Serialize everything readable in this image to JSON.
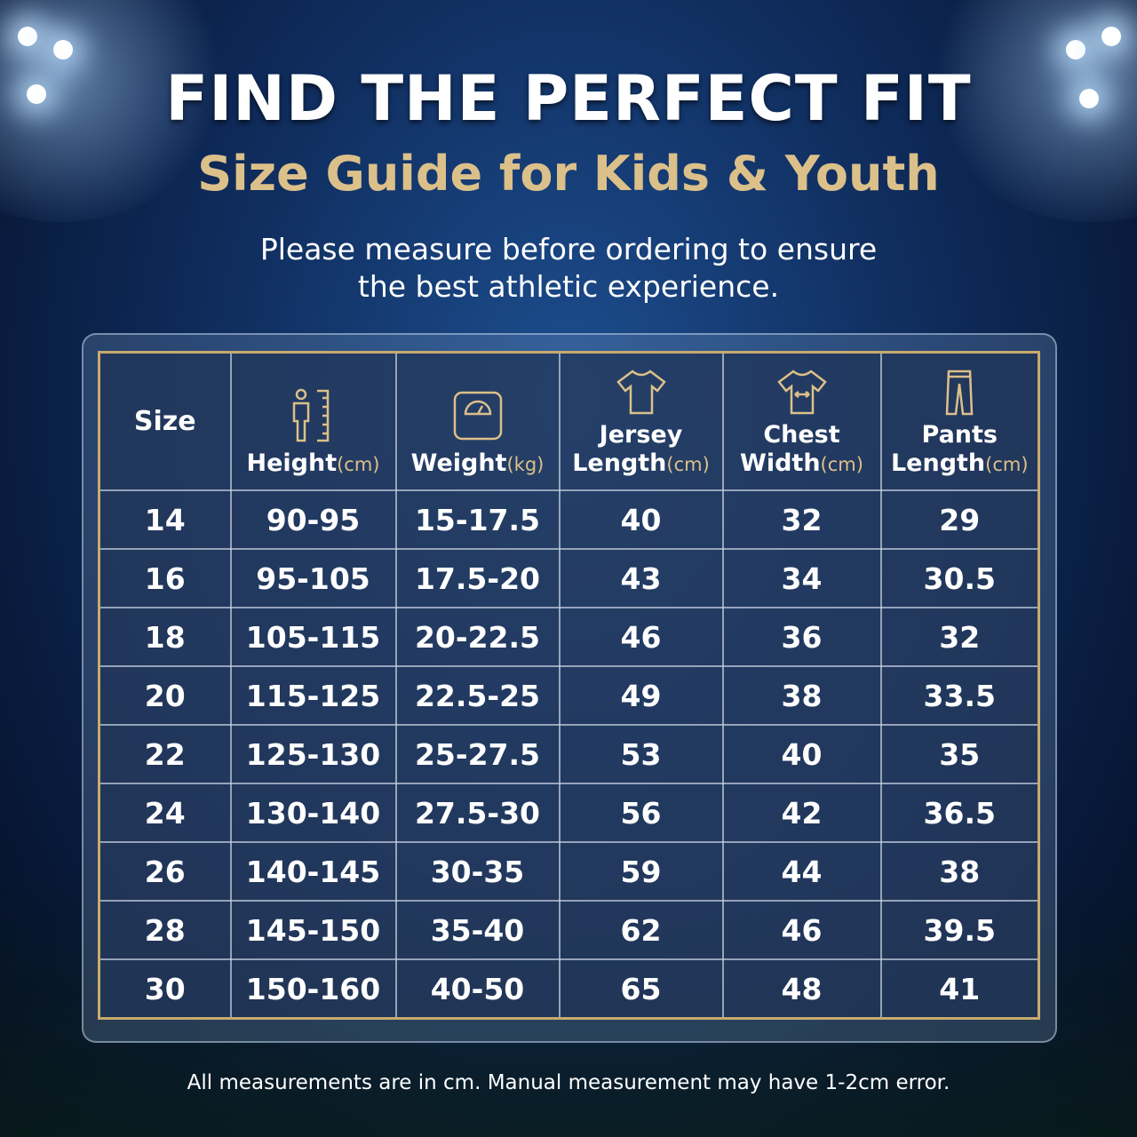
{
  "header": {
    "title": "FIND THE PERFECT FIT",
    "subtitle": "Size Guide for Kids & Youth",
    "intro": [
      "Please measure before ordering to ensure",
      "the best athletic experience."
    ]
  },
  "table": {
    "columns": [
      {
        "label": [
          "Size"
        ]
      },
      {
        "label": [
          "Height"
        ],
        "unit": "(cm)"
      },
      {
        "label": [
          "Weight"
        ],
        "unit": "(kg)"
      },
      {
        "label": [
          "Jersey",
          "Length"
        ],
        "unit": "(cm)"
      },
      {
        "label": [
          "Chest",
          "Width"
        ],
        "unit": "(cm)"
      },
      {
        "label": [
          "Pants",
          "Length"
        ],
        "unit": "(cm)"
      }
    ],
    "rows": [
      [
        "14",
        "90-95",
        "15-17.5",
        "40",
        "32",
        "29"
      ],
      [
        "16",
        "95-105",
        "17.5-20",
        "43",
        "34",
        "30.5"
      ],
      [
        "18",
        "105-115",
        "20-22.5",
        "46",
        "36",
        "32"
      ],
      [
        "20",
        "115-125",
        "22.5-25",
        "49",
        "38",
        "33.5"
      ],
      [
        "22",
        "125-130",
        "25-27.5",
        "53",
        "40",
        "35"
      ],
      [
        "24",
        "130-140",
        "27.5-30",
        "56",
        "42",
        "36.5"
      ],
      [
        "26",
        "140-145",
        "30-35",
        "59",
        "44",
        "38"
      ],
      [
        "28",
        "145-150",
        "35-40",
        "62",
        "46",
        "39.5"
      ],
      [
        "30",
        "150-160",
        "40-50",
        "65",
        "48",
        "41"
      ]
    ]
  },
  "footnote": "All measurements are in cm. Manual measurement may have 1-2cm error."
}
